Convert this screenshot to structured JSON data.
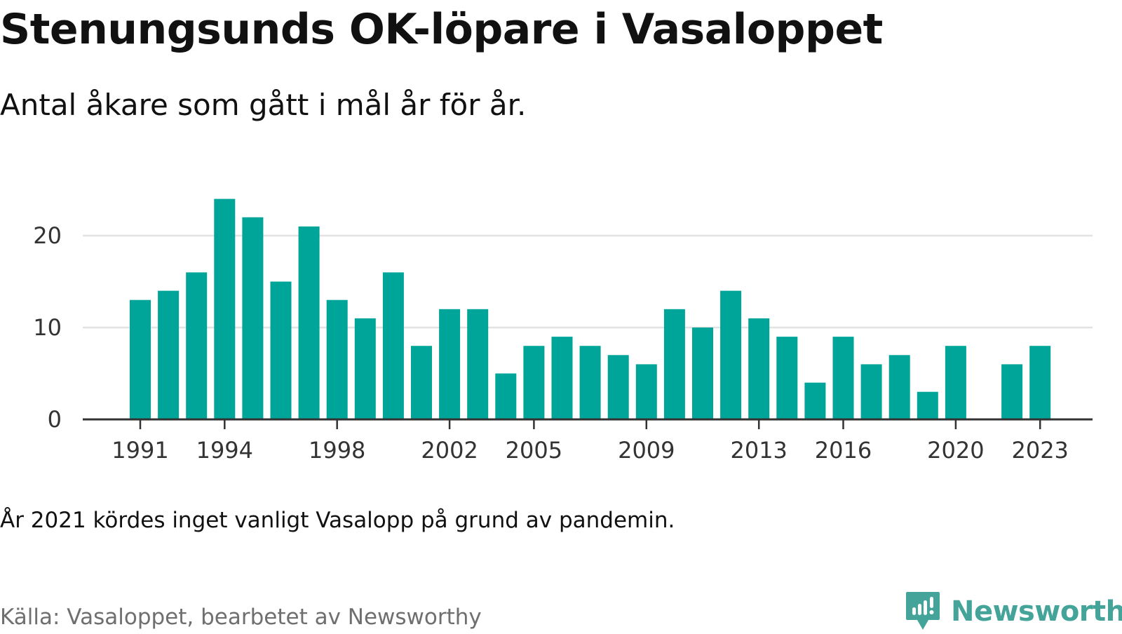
{
  "title": "Stenungsunds OK-löpare i Vasaloppet",
  "subtitle": "Antal åkare som gått i mål år för år.",
  "note": "År 2021 kördes inget vanligt Vasalopp på grund av pandemin.",
  "source": "Källa: Vasaloppet, bearbetet av Newsworthy",
  "brand": {
    "name": "Newsworthy",
    "color": "#45a49a",
    "icon": "newsworthy-logo-icon"
  },
  "chart_data": {
    "type": "bar",
    "x": [
      1991,
      1992,
      1993,
      1994,
      1995,
      1996,
      1997,
      1998,
      1999,
      2000,
      2001,
      2002,
      2003,
      2004,
      2005,
      2006,
      2007,
      2008,
      2009,
      2010,
      2011,
      2012,
      2013,
      2014,
      2015,
      2016,
      2017,
      2018,
      2019,
      2020,
      2021,
      2022,
      2023
    ],
    "values": [
      13,
      14,
      16,
      24,
      22,
      15,
      21,
      13,
      11,
      16,
      8,
      12,
      12,
      5,
      8,
      9,
      8,
      7,
      6,
      12,
      10,
      14,
      11,
      9,
      4,
      9,
      6,
      7,
      3,
      8,
      null,
      6,
      8
    ],
    "x_ticks": [
      1991,
      1994,
      1998,
      2002,
      2005,
      2009,
      2013,
      2016,
      2020,
      2023
    ],
    "y_ticks": [
      0,
      10,
      20
    ],
    "ylim": [
      0,
      25
    ],
    "xlabel": "",
    "ylabel": "",
    "grid": true,
    "bar_color": "#00a599",
    "grid_color": "#e2e2e2",
    "axis_color": "#333333"
  }
}
